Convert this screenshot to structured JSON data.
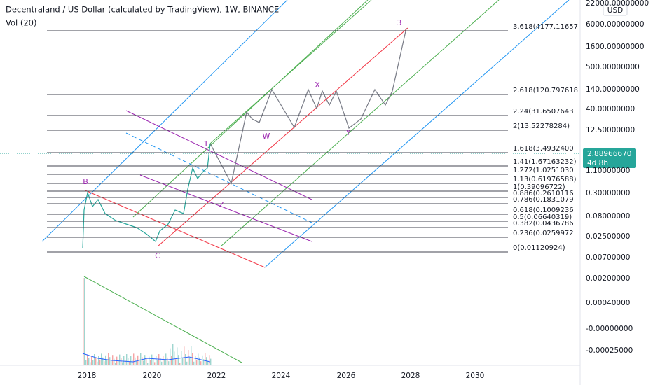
{
  "header": {
    "title": "Decentraland / US Dollar (calculated by TradingView), 1W, BINANCE",
    "indicator": "Vol (20)"
  },
  "price_axis": {
    "currency": "USD",
    "labels": [
      "22000.00000000",
      "6000.00000000",
      "1600.00000000",
      "500.00000000",
      "140.00000000",
      "40.00000000",
      "12.50000000",
      "1.10000000",
      "0.30000000",
      "0.08000000",
      "0.02500000",
      "0.00700000",
      "0.00200000",
      "0.00040000",
      "-0.00000000",
      "-0.00025000"
    ],
    "current_price": "2.88966670",
    "countdown": "4d 8h"
  },
  "fib_levels": [
    "3.618(4177.11657",
    "2.618(120.797618",
    "2.24(31.6507643",
    "2(13.52278284)",
    "1.618(3.4932400",
    "1.41(1.67163232)",
    "1.272(1.0251030",
    "1.13(0.61976588)",
    "1(0.39096722)",
    "0.886(0.2610116",
    "0.786(0.1831079",
    "0.618(0.1009236",
    "0.5(0.06640319)",
    "0.382(0.0436786",
    "0.236(0.0259972",
    "0(0.01120924)"
  ],
  "wave_labels": [
    "B",
    "C",
    "1",
    "Z",
    "W",
    "X",
    "Y",
    "3"
  ],
  "time_axis": [
    "2018",
    "2020",
    "2022",
    "2024",
    "2026",
    "2028",
    "2030"
  ]
}
